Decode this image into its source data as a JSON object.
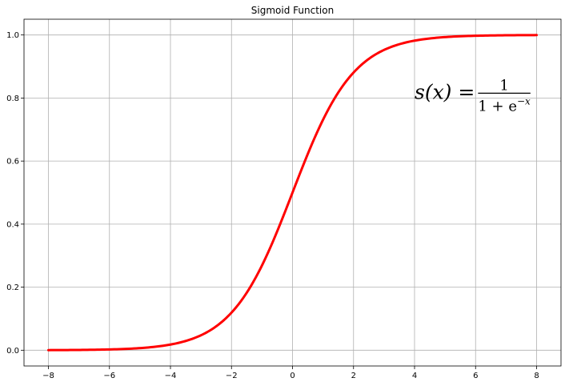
{
  "chart_data": {
    "type": "line",
    "title": "Sigmoid Function",
    "xlabel": "",
    "ylabel": "",
    "xlim": [
      -8.8,
      8.8
    ],
    "ylim": [
      -0.05,
      1.05
    ],
    "xticks": [
      -8,
      -6,
      -4,
      -2,
      0,
      2,
      4,
      6,
      8
    ],
    "xtick_labels": [
      "−8",
      "−6",
      "−4",
      "−2",
      "0",
      "2",
      "4",
      "6",
      "8"
    ],
    "yticks": [
      0.0,
      0.2,
      0.4,
      0.6,
      0.8,
      1.0
    ],
    "ytick_labels": [
      "0.0",
      "0.2",
      "0.4",
      "0.6",
      "0.8",
      "1.0"
    ],
    "grid": true,
    "series": [
      {
        "color": "#ff0000",
        "x": [
          -8,
          -7,
          -6,
          -5,
          -4,
          -3,
          -2.5,
          -2,
          -1.5,
          -1,
          -0.5,
          0,
          0.5,
          1,
          1.5,
          2,
          2.5,
          3,
          4,
          5,
          6,
          7,
          8
        ],
        "y": [
          0.0003,
          0.0009,
          0.0025,
          0.0067,
          0.018,
          0.0474,
          0.0759,
          0.1192,
          0.1824,
          0.2689,
          0.3775,
          0.5,
          0.6225,
          0.7311,
          0.8176,
          0.8808,
          0.9241,
          0.9526,
          0.982,
          0.9933,
          0.9975,
          0.9991,
          0.9997
        ]
      }
    ],
    "annotation": {
      "lhs": "s(x) =",
      "numerator": "1",
      "denominator_base": "1 + e",
      "denominator_exponent": "−x",
      "x": 4,
      "y": 0.8
    }
  }
}
